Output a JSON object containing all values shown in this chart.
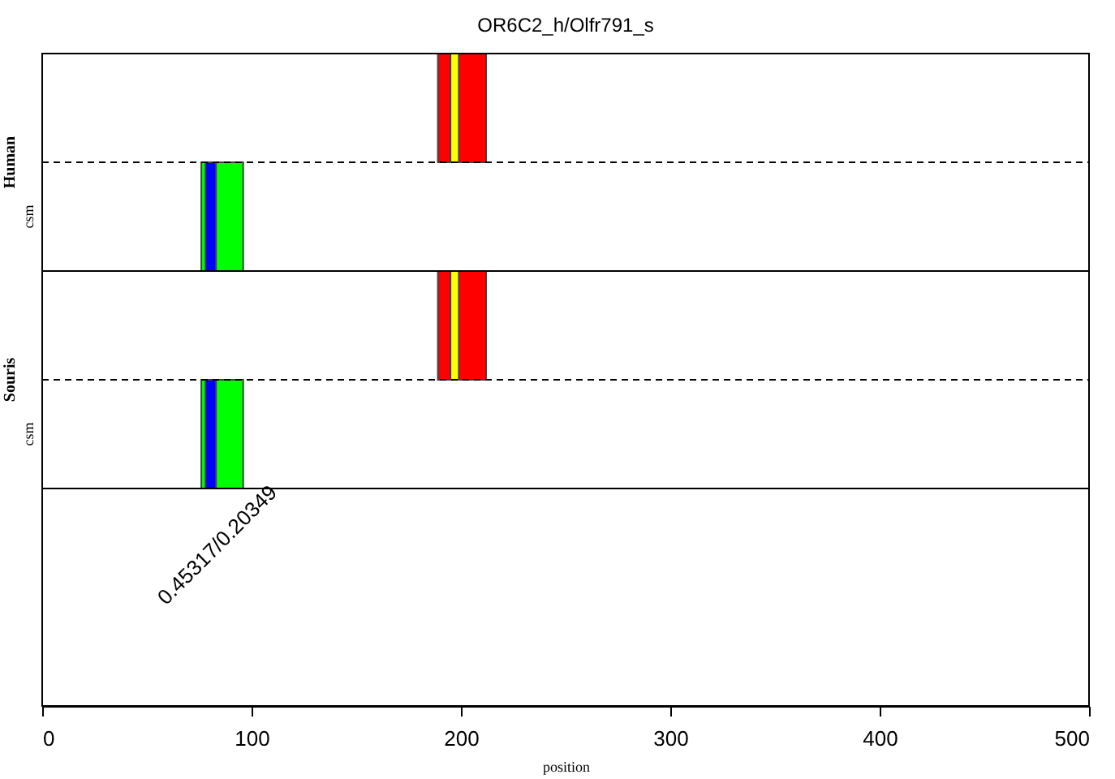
{
  "chart_data": {
    "type": "bar",
    "orientation": "horizontal",
    "title": "OR6C2_h/Olfr791_s",
    "xlabel": "position",
    "categories": [
      null,
      "csm",
      null,
      "csm",
      null,
      null
    ],
    "series": [
      {
        "color": "#ff0000",
        "base": [
          189,
          null,
          189,
          null,
          null,
          null
        ],
        "values": [
          23,
          null,
          23,
          null,
          null,
          null
        ]
      },
      {
        "color": "#ffff00",
        "base": [
          195,
          null,
          195,
          null,
          null,
          null
        ],
        "values": [
          4,
          null,
          4,
          null,
          null,
          null
        ]
      },
      {
        "color": "#00ff00",
        "base": [
          null,
          76,
          null,
          76,
          null,
          null
        ],
        "values": [
          null,
          20,
          null,
          20,
          null,
          null
        ]
      },
      {
        "color": "#0000ff",
        "base": [
          null,
          78,
          null,
          78,
          null,
          null
        ],
        "values": [
          null,
          5,
          null,
          5,
          null,
          null
        ]
      }
    ],
    "xlim": [
      0,
      500
    ],
    "xticks": [
      0,
      100,
      200,
      300,
      400,
      500
    ],
    "annotations": [
      "Human",
      "Souris",
      "0.45317/0.20349"
    ],
    "grid": false
  }
}
